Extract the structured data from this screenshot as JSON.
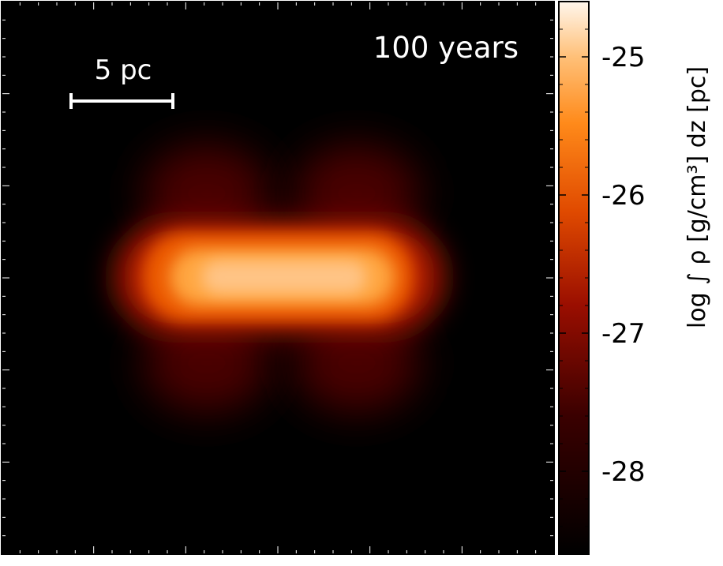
{
  "chart_data": {
    "type": "heatmap",
    "annotation": "100 years",
    "scale_bar": {
      "label": "5 pc",
      "length_pc": 5
    },
    "colorbar": {
      "label": "log ∫ ρ [g/cm³] dz [pc]",
      "range": [
        -28.6,
        -24.6
      ],
      "ticks": [
        -25,
        -26,
        -27,
        -28
      ],
      "tick_labels": [
        "-25",
        "-26",
        "-27",
        "-28"
      ],
      "colormap": "black-red-orange-white"
    }
  }
}
